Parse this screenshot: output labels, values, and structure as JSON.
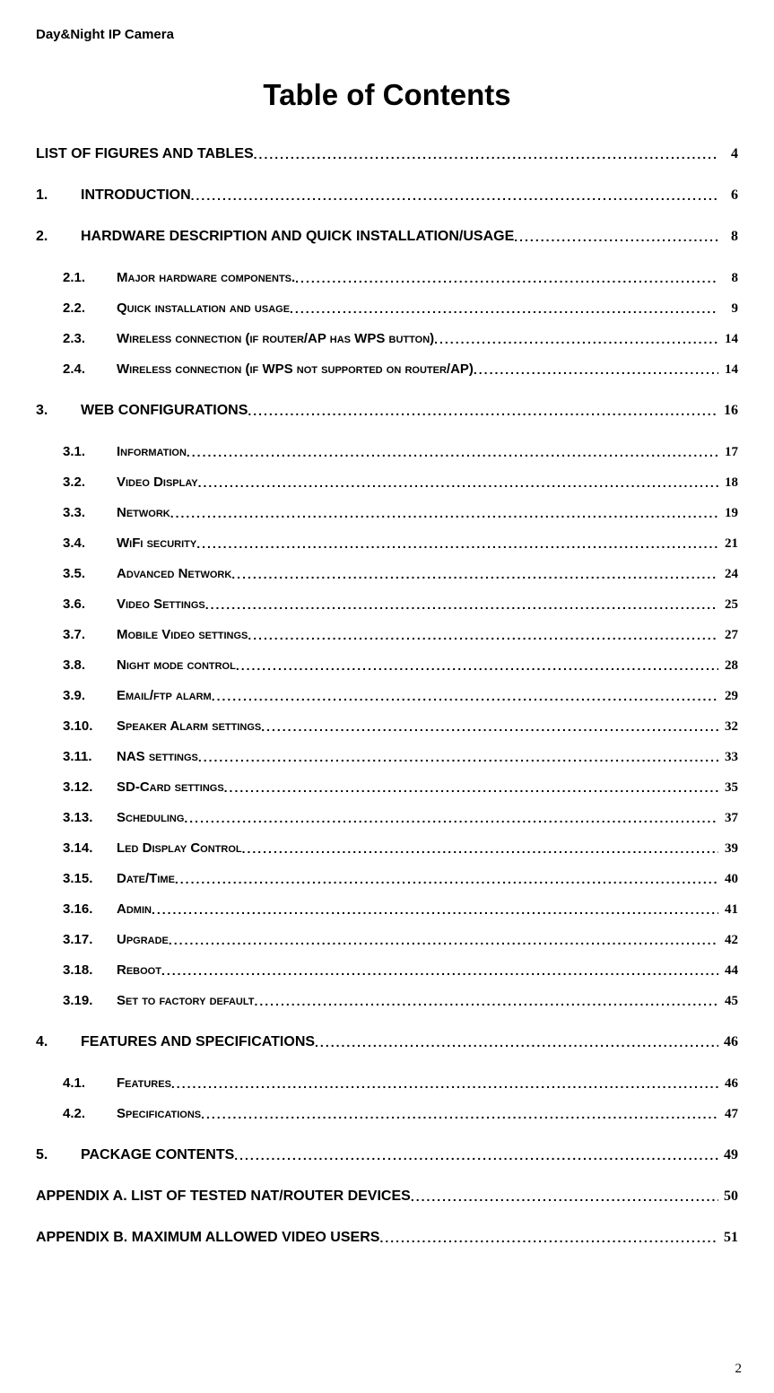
{
  "header": "Day&Night IP Camera",
  "title": "Table of Contents",
  "page_number": "2",
  "styles": {
    "background_color": "#ffffff",
    "text_color": "#000000",
    "header_font": "Arial, Helvetica, sans-serif",
    "header_fontsize": 15,
    "title_font": "Arial, Helvetica, sans-serif",
    "title_fontsize": 33,
    "level0_fontsize": 16,
    "level1_fontsize": 15,
    "level1_variant": "small-caps",
    "page_font": "Times New Roman",
    "dot_leader_char": "."
  },
  "toc": [
    {
      "level": 0,
      "num": "",
      "text": "LIST OF FIGURES AND TABLES",
      "page": "4"
    },
    {
      "level": 0,
      "num": "1.",
      "text": "INTRODUCTION",
      "page": "6",
      "gap_before": true
    },
    {
      "level": 0,
      "num": "2.",
      "text": "HARDWARE DESCRIPTION AND QUICK INSTALLATION/USAGE ",
      "page": "8",
      "gap_before": true
    },
    {
      "level": 1,
      "num": "2.1.",
      "text": "Major hardware components. ",
      "page": "8",
      "gap_before": true
    },
    {
      "level": 1,
      "num": "2.2.",
      "text": "Quick installation and usage ",
      "page": "9"
    },
    {
      "level": 1,
      "num": "2.3.",
      "text": "Wireless connection (if router/AP has WPS button) ",
      "page": "14"
    },
    {
      "level": 1,
      "num": "2.4.",
      "text": "Wireless connection (if WPS not supported on router/AP) ",
      "page": "14"
    },
    {
      "level": 0,
      "num": "3.",
      "text": "WEB CONFIGURATIONS",
      "page": "16",
      "gap_before": true
    },
    {
      "level": 1,
      "num": "3.1.",
      "text": "Information ",
      "page": "17",
      "gap_before": true
    },
    {
      "level": 1,
      "num": "3.2.",
      "text": "Video Display ",
      "page": "18"
    },
    {
      "level": 1,
      "num": "3.3.",
      "text": "Network",
      "page": "19"
    },
    {
      "level": 1,
      "num": "3.4.",
      "text": "WiFi security",
      "page": "21"
    },
    {
      "level": 1,
      "num": "3.5.",
      "text": "Advanced Network",
      "page": "24"
    },
    {
      "level": 1,
      "num": "3.6.",
      "text": "Video Settings ",
      "page": "25"
    },
    {
      "level": 1,
      "num": "3.7.",
      "text": "Mobile Video settings",
      "page": "27"
    },
    {
      "level": 1,
      "num": "3.8.",
      "text": "Night mode control ",
      "page": "28"
    },
    {
      "level": 1,
      "num": "3.9.",
      "text": "Email/ftp alarm ",
      "page": "29"
    },
    {
      "level": 1,
      "num": "3.10.",
      "text": "Speaker Alarm settings ",
      "page": "32"
    },
    {
      "level": 1,
      "num": "3.11.",
      "text": "NAS settings",
      "page": "33"
    },
    {
      "level": 1,
      "num": "3.12.",
      "text": "SD-Card settings ",
      "page": "35"
    },
    {
      "level": 1,
      "num": "3.13.",
      "text": "Scheduling ",
      "page": "37"
    },
    {
      "level": 1,
      "num": "3.14.",
      "text": "Led Display Control",
      "page": "39"
    },
    {
      "level": 1,
      "num": "3.15.",
      "text": "Date/Time",
      "page": "40"
    },
    {
      "level": 1,
      "num": "3.16.",
      "text": "Admin",
      "page": "41"
    },
    {
      "level": 1,
      "num": "3.17.",
      "text": "Upgrade ",
      "page": "42"
    },
    {
      "level": 1,
      "num": "3.18.",
      "text": "Reboot",
      "page": "44"
    },
    {
      "level": 1,
      "num": "3.19.",
      "text": "Set to factory default",
      "page": "45"
    },
    {
      "level": 0,
      "num": "4.",
      "text": "FEATURES AND SPECIFICATIONS",
      "page": "46",
      "gap_before": true
    },
    {
      "level": 1,
      "num": "4.1.",
      "text": "Features ",
      "page": "46",
      "gap_before": true
    },
    {
      "level": 1,
      "num": "4.2.",
      "text": "Specifications",
      "page": "47"
    },
    {
      "level": 0,
      "num": "5.",
      "text": "PACKAGE CONTENTS",
      "page": "49",
      "gap_before": true
    },
    {
      "level": 0,
      "num": "",
      "text": "APPENDIX A. LIST OF TESTED NAT/ROUTER DEVICES",
      "page": "50",
      "gap_before": true
    },
    {
      "level": 0,
      "num": "",
      "text": "APPENDIX B. MAXIMUM ALLOWED VIDEO USERS",
      "page": "51",
      "gap_before": true
    }
  ]
}
